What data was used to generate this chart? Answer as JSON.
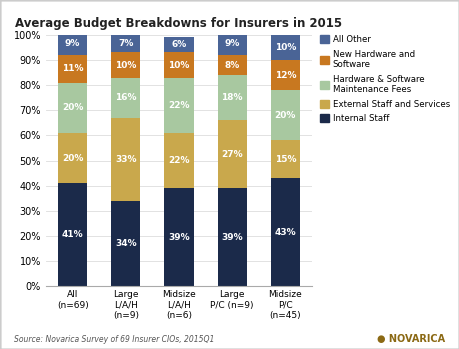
{
  "title": "Average Budget Breakdowns for Insurers in 2015",
  "categories": [
    "All\n(n=69)",
    "Large\nL/A/H\n(n=9)",
    "Midsize\nL/A/H\n(n=6)",
    "Large\nP/C (n=9)",
    "Midsize\nP/C\n(n=45)"
  ],
  "series_order": [
    "Internal Staff",
    "External Staff and Services",
    "Hardware & Software\nMaintenance Fees",
    "New Hardware and\nSoftware",
    "All Other"
  ],
  "series": {
    "Internal Staff": [
      41,
      34,
      39,
      39,
      43
    ],
    "External Staff and Services": [
      20,
      33,
      22,
      27,
      15
    ],
    "Hardware & Software\nMaintenance Fees": [
      20,
      16,
      22,
      18,
      20
    ],
    "New Hardware and\nSoftware": [
      11,
      10,
      10,
      8,
      12
    ],
    "All Other": [
      9,
      7,
      6,
      9,
      10
    ]
  },
  "colors": {
    "Internal Staff": "#1b2a4a",
    "External Staff and Services": "#c9a84c",
    "Hardware & Software\nMaintenance Fees": "#a8c8a0",
    "New Hardware and\nSoftware": "#c87820",
    "All Other": "#4a6496"
  },
  "legend_order": [
    "All Other",
    "New Hardware and\nSoftware",
    "Hardware & Software\nMaintenance Fees",
    "External Staff and Services",
    "Internal Staff"
  ],
  "source_text": "Source: Novarica Survey of 69 Insurer CIOs, 2015Q1",
  "ylim": [
    0,
    100
  ],
  "yticks": [
    0,
    10,
    20,
    30,
    40,
    50,
    60,
    70,
    80,
    90,
    100
  ],
  "ytick_labels": [
    "0%",
    "10%",
    "20%",
    "30%",
    "40%",
    "50%",
    "60%",
    "70%",
    "80%",
    "90%",
    "100%"
  ],
  "bar_width": 0.55,
  "plot_bg": "#ffffff",
  "figure_bg": "#ffffff",
  "border_color": "#cccccc"
}
